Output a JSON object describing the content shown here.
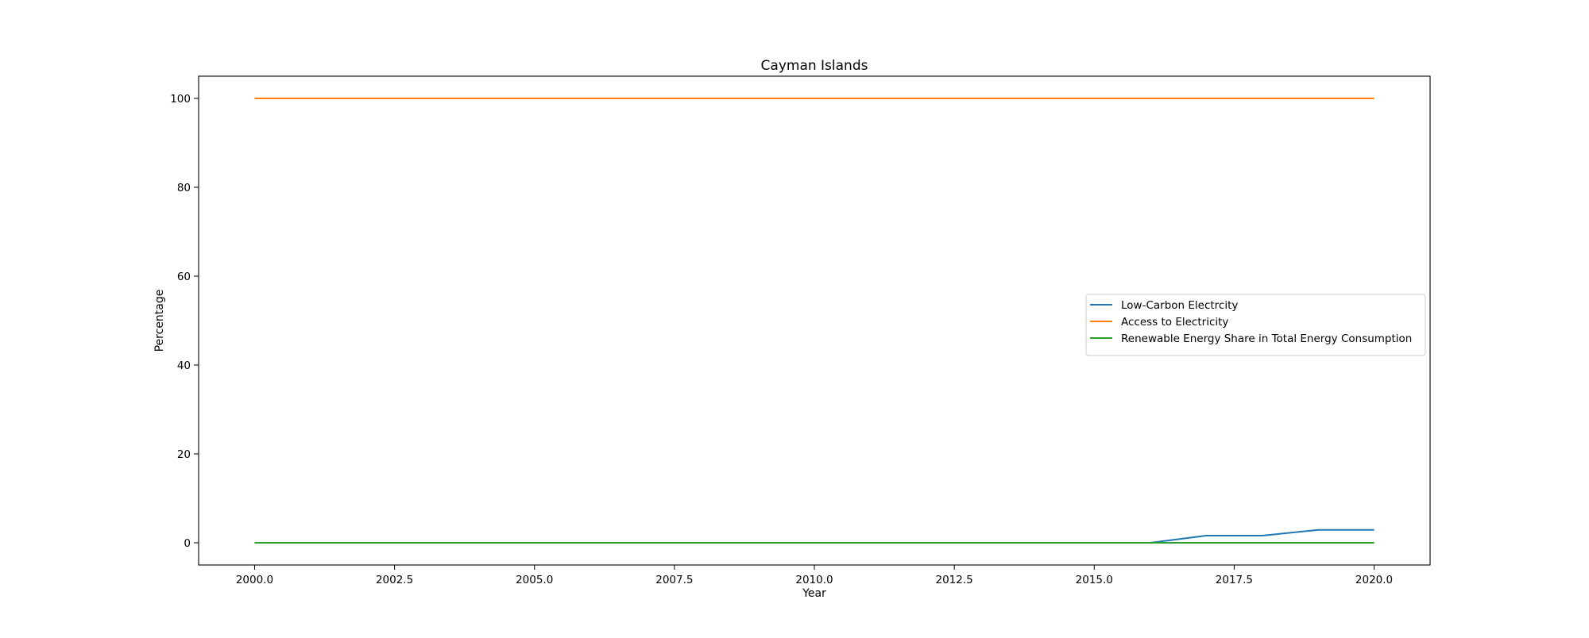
{
  "chart_data": {
    "type": "line",
    "title": "Cayman Islands",
    "xlabel": "Year",
    "ylabel": "Percentage",
    "xlim": [
      1999.0,
      2021.0
    ],
    "ylim": [
      -5.0,
      105.0
    ],
    "xticks": [
      2000.0,
      2002.5,
      2005.0,
      2007.5,
      2010.0,
      2012.5,
      2015.0,
      2017.5,
      2020.0
    ],
    "xtick_labels": [
      "2000.0",
      "2002.5",
      "2005.0",
      "2007.5",
      "2010.0",
      "2012.5",
      "2015.0",
      "2017.5",
      "2020.0"
    ],
    "yticks": [
      0,
      20,
      40,
      60,
      80,
      100
    ],
    "ytick_labels": [
      "0",
      "20",
      "40",
      "60",
      "80",
      "100"
    ],
    "grid": false,
    "legend_position": "center-right",
    "x": [
      2000,
      2001,
      2002,
      2003,
      2004,
      2005,
      2006,
      2007,
      2008,
      2009,
      2010,
      2011,
      2012,
      2013,
      2014,
      2015,
      2016,
      2017,
      2018,
      2019,
      2020
    ],
    "series": [
      {
        "name": "Low-Carbon Electrcity",
        "color": "#1f77b4",
        "values": [
          0,
          0,
          0,
          0,
          0,
          0,
          0,
          0,
          0,
          0,
          0,
          0,
          0,
          0,
          0,
          0,
          0,
          1.6,
          1.6,
          2.9,
          2.9
        ]
      },
      {
        "name": "Access to Electricity",
        "color": "#ff7f0e",
        "values": [
          100,
          100,
          100,
          100,
          100,
          100,
          100,
          100,
          100,
          100,
          100,
          100,
          100,
          100,
          100,
          100,
          100,
          100,
          100,
          100,
          100
        ]
      },
      {
        "name": "Renewable Energy Share in Total Energy Consumption",
        "color": "#2ca02c",
        "values": [
          0,
          0,
          0,
          0,
          0,
          0,
          0,
          0,
          0,
          0,
          0,
          0,
          0,
          0,
          0,
          0,
          0,
          0,
          0,
          0,
          0
        ]
      }
    ]
  }
}
